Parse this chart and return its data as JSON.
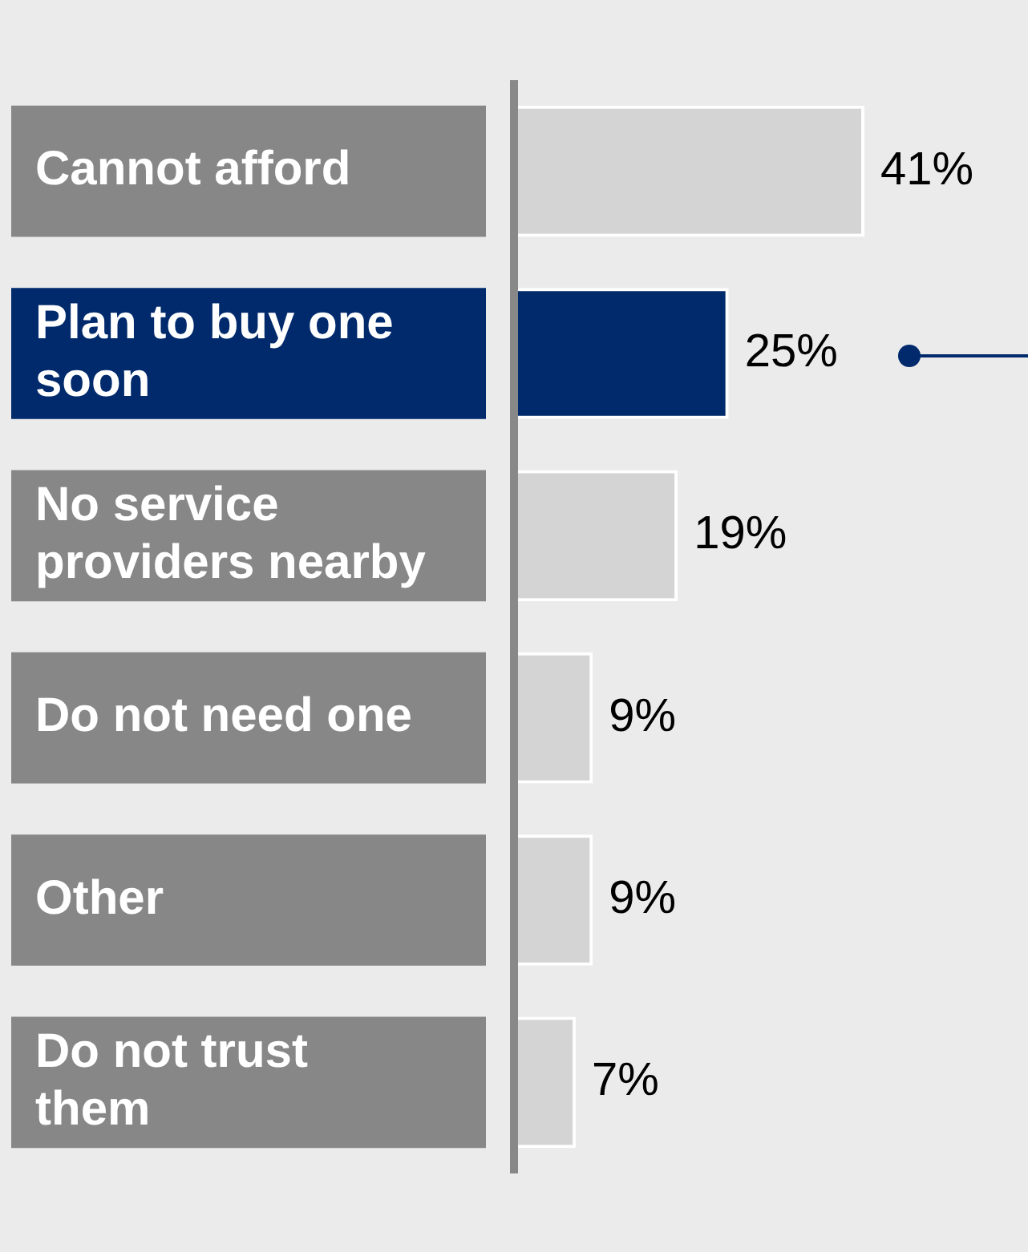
{
  "chart_data": {
    "type": "bar",
    "orientation": "horizontal",
    "categories": [
      "Cannot afford",
      "Plan to buy one\nsoon",
      "No service\nproviders nearby",
      "Do not need one",
      "Other",
      "Do not trust\nthem"
    ],
    "values": [
      41,
      25,
      19,
      9,
      9,
      7
    ],
    "colors": [
      "#d4d4d4",
      "#002a6c",
      "#d4d4d4",
      "#d4d4d4",
      "#d4d4d4",
      "#d4d4d4"
    ],
    "value_labels": [
      "41%",
      "25%",
      "19%",
      "9%",
      "9%",
      "7%"
    ],
    "tick_labels": "y",
    "legend": false
  }
}
